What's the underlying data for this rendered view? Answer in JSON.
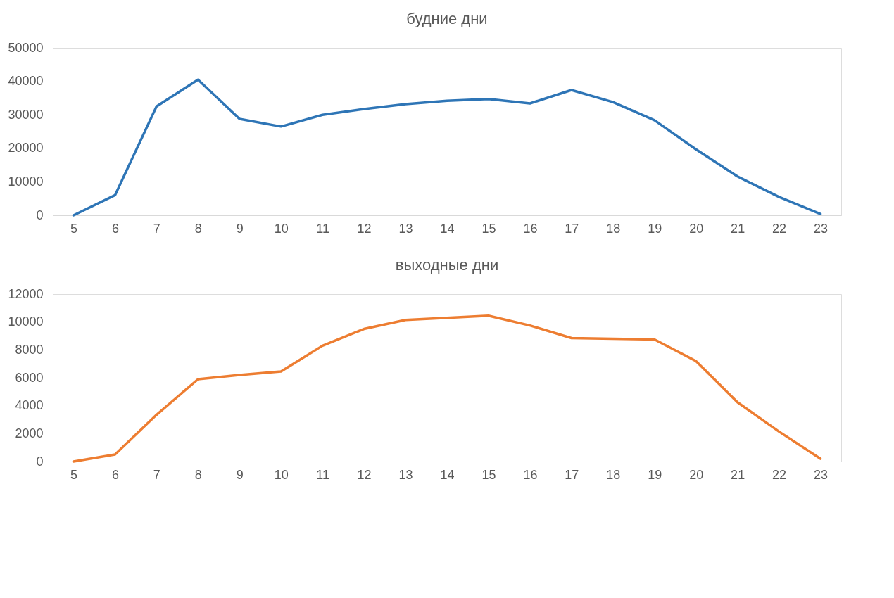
{
  "chart_data": [
    {
      "type": "line",
      "title": "будние дни",
      "categories": [
        "5",
        "6",
        "7",
        "8",
        "9",
        "10",
        "11",
        "12",
        "13",
        "14",
        "15",
        "16",
        "17",
        "18",
        "19",
        "20",
        "21",
        "22",
        "23"
      ],
      "series": [
        {
          "color": "#2e75b6",
          "values": [
            0,
            6000,
            32500,
            40500,
            28800,
            26500,
            30000,
            31700,
            33200,
            34200,
            34700,
            33400,
            37400,
            33800,
            28400,
            19700,
            11600,
            5500,
            400
          ]
        }
      ],
      "ylim": [
        0,
        50000
      ],
      "yticks": [
        0,
        10000,
        20000,
        30000,
        40000,
        50000
      ],
      "grid": false,
      "marker": "none",
      "line_style": "solid"
    },
    {
      "type": "line",
      "title": "выходные дни",
      "categories": [
        "5",
        "6",
        "7",
        "8",
        "9",
        "10",
        "11",
        "12",
        "13",
        "14",
        "15",
        "16",
        "17",
        "18",
        "19",
        "20",
        "21",
        "22",
        "23"
      ],
      "series": [
        {
          "color": "#ed7d31",
          "values": [
            0,
            500,
            3350,
            5900,
            6200,
            6450,
            8300,
            9500,
            10150,
            10300,
            10450,
            9750,
            8850,
            8800,
            8750,
            7200,
            4250,
            2150,
            200
          ]
        }
      ],
      "ylim": [
        0,
        12000
      ],
      "yticks": [
        0,
        2000,
        4000,
        6000,
        8000,
        10000,
        12000
      ],
      "grid": false,
      "marker": "none",
      "line_style": "solid"
    }
  ]
}
